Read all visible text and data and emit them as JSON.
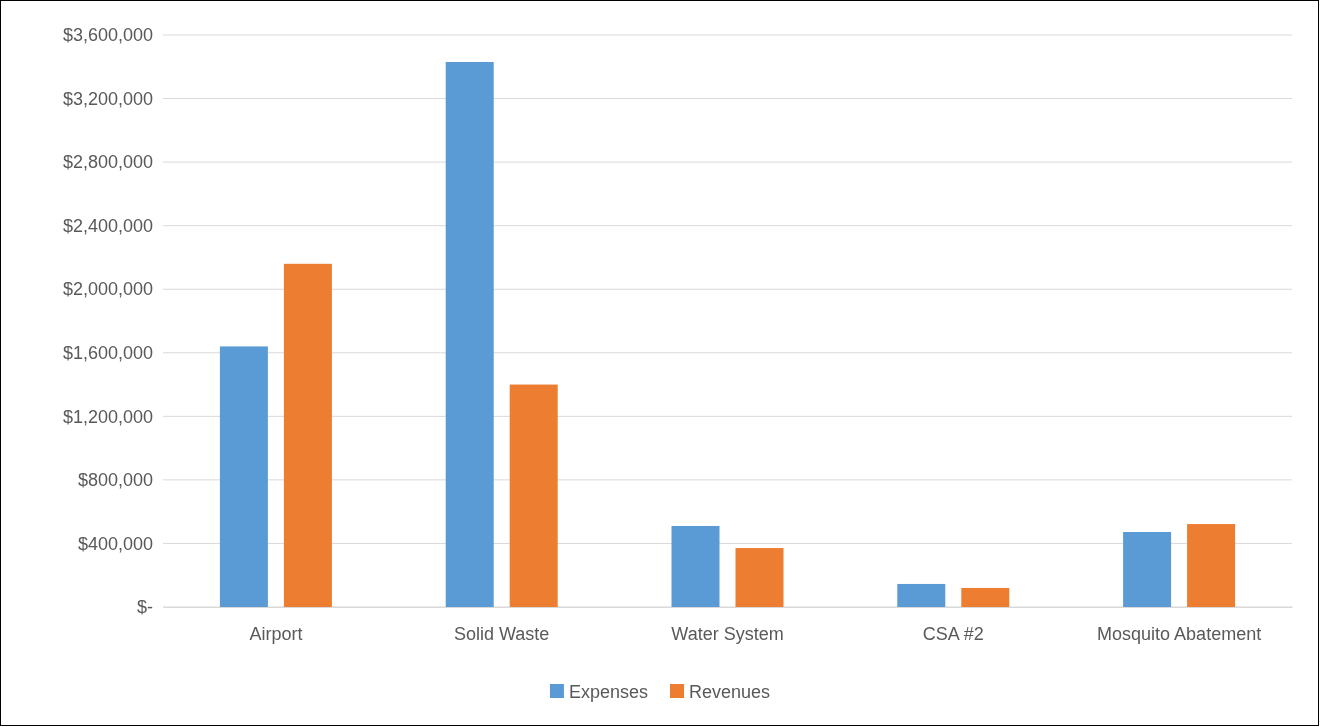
{
  "chart_data": {
    "type": "bar",
    "categories": [
      "Airport",
      "Solid Waste",
      "Water System",
      "CSA #2",
      "Mosquito Abatement"
    ],
    "series": [
      {
        "name": "Expenses",
        "color": "#5b9bd5",
        "values": [
          1640000,
          3430000,
          510000,
          145000,
          472000
        ]
      },
      {
        "name": "Revenues",
        "color": "#ed7d31",
        "values": [
          2160000,
          1400000,
          371000,
          120000,
          522000
        ]
      }
    ],
    "ylim": [
      0,
      3600000
    ],
    "yticks": [
      {
        "value": 0,
        "label": "$-"
      },
      {
        "value": 400000,
        "label": "$400,000"
      },
      {
        "value": 800000,
        "label": "$800,000"
      },
      {
        "value": 1200000,
        "label": "$1,200,000"
      },
      {
        "value": 1600000,
        "label": "$1,600,000"
      },
      {
        "value": 2000000,
        "label": "$2,000,000"
      },
      {
        "value": 2400000,
        "label": "$2,400,000"
      },
      {
        "value": 2800000,
        "label": "$2,800,000"
      },
      {
        "value": 3200000,
        "label": "$3,200,000"
      },
      {
        "value": 3600000,
        "label": "$3,600,000"
      }
    ],
    "grid": "y",
    "legend": "bottom"
  }
}
